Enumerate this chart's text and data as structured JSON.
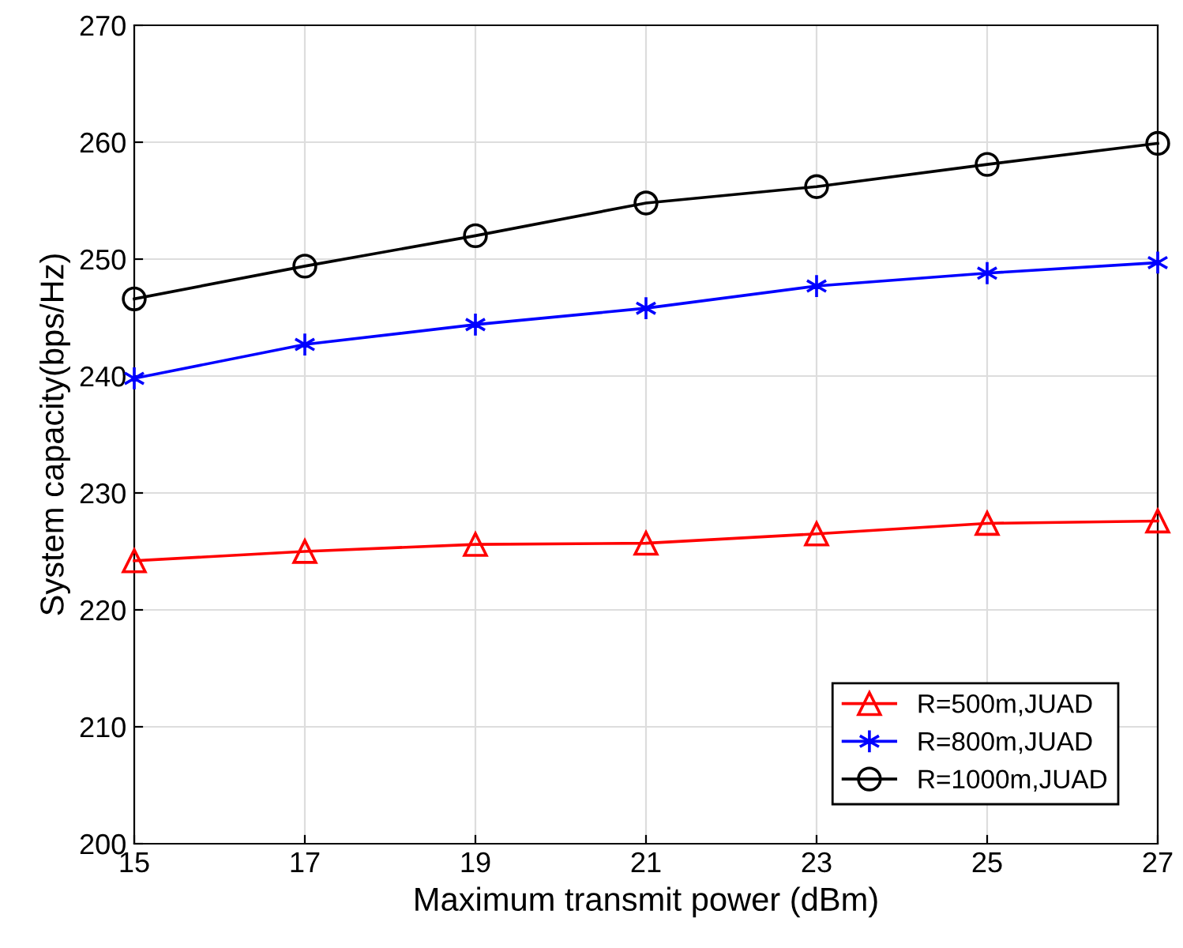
{
  "chart_data": {
    "type": "line",
    "xlabel": "Maximum transmit power (dBm)",
    "ylabel": "System capacity(bps/Hz)",
    "x": [
      15,
      17,
      19,
      21,
      23,
      25,
      27
    ],
    "series": [
      {
        "name": "R=500m,JUAD",
        "color": "#ff0000",
        "marker": "triangle",
        "values": [
          224.2,
          225.0,
          225.6,
          225.7,
          226.5,
          227.4,
          227.6
        ]
      },
      {
        "name": "R=800m,JUAD",
        "color": "#0000ff",
        "marker": "cross",
        "values": [
          239.8,
          242.7,
          244.4,
          245.8,
          247.7,
          248.8,
          249.7
        ]
      },
      {
        "name": "R=1000m,JUAD",
        "color": "#000000",
        "marker": "circle",
        "values": [
          246.6,
          249.4,
          252.0,
          254.8,
          256.2,
          258.1,
          259.9
        ]
      }
    ],
    "xlim": [
      15,
      27
    ],
    "xticks": [
      15,
      17,
      19,
      21,
      23,
      25,
      27
    ],
    "ylim": [
      200,
      270
    ],
    "yticks": [
      200,
      210,
      220,
      230,
      240,
      250,
      260,
      270
    ],
    "grid": true,
    "legend": "bottom right",
    "line_style": "solid"
  }
}
